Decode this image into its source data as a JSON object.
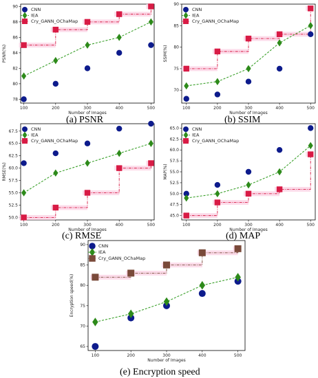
{
  "colors": {
    "cnn": "#0d1b8c",
    "iea": "#2d8a1a",
    "iea_line": "#3aa02a",
    "cry": "#d81b45",
    "cry_e": "#7a4a3a",
    "step_bg": "#fbd6e6",
    "axis": "#000000",
    "grid": "#dddddd"
  },
  "legend": {
    "cnn": "CNN",
    "iea": "IEA",
    "cry": "Cry_GANN_OChaMap"
  },
  "chart_data": [
    {
      "id": "psnr",
      "type": "scatter",
      "caption": "(a) PSNR",
      "xlabel": "Number of Images",
      "ylabel": "PSNR(%)",
      "x": [
        100,
        200,
        300,
        400,
        500
      ],
      "xlim": [
        90,
        510
      ],
      "ylim": [
        77.5,
        90.3
      ],
      "yticks": [
        78,
        80,
        82,
        84,
        86,
        88,
        90
      ],
      "xticks": [
        100,
        200,
        300,
        400,
        500
      ],
      "series": [
        {
          "name": "CNN",
          "values": [
            78,
            80,
            82,
            84,
            85
          ]
        },
        {
          "name": "IEA",
          "values": [
            81,
            83,
            85,
            86,
            88
          ]
        },
        {
          "name": "Cry_GANN_OChaMap",
          "values": [
            85,
            87,
            88,
            89,
            90
          ]
        }
      ],
      "legend_position": "top-left"
    },
    {
      "id": "ssim",
      "type": "scatter",
      "caption": "(b) SSIM",
      "xlabel": "Number of Images",
      "ylabel": "SSIM(%)",
      "x": [
        100,
        200,
        300,
        400,
        500
      ],
      "xlim": [
        85,
        515
      ],
      "ylim": [
        67,
        90
      ],
      "yticks": [
        70,
        75,
        80,
        85,
        90
      ],
      "xticks": [
        100,
        200,
        300,
        400,
        500
      ],
      "series": [
        {
          "name": "CNN",
          "values": [
            68,
            69,
            72,
            75,
            83
          ]
        },
        {
          "name": "IEA",
          "values": [
            71,
            72,
            75,
            81,
            85
          ]
        },
        {
          "name": "Cry_GANN_OChaMap",
          "values": [
            75,
            79,
            82,
            83,
            89
          ]
        }
      ],
      "legend_position": "top-left"
    },
    {
      "id": "rmse",
      "type": "scatter",
      "caption": "(c) RMSE",
      "xlabel": "Number of Images",
      "ylabel": "RMSE(%)",
      "x": [
        100,
        200,
        300,
        400,
        500
      ],
      "xlim": [
        90,
        510
      ],
      "ylim": [
        49.5,
        69
      ],
      "yticks": [
        50.0,
        52.5,
        55.0,
        57.5,
        60.0,
        62.5,
        65.0,
        67.5
      ],
      "ytick_labels": [
        "50.0",
        "52.5",
        "55.0",
        "57.5",
        "60.0",
        "62.5",
        "65.0",
        "67.5"
      ],
      "xticks": [
        100,
        200,
        300,
        400,
        500
      ],
      "series": [
        {
          "name": "CNN",
          "values": [
            61,
            63,
            65,
            68,
            69
          ]
        },
        {
          "name": "IEA",
          "values": [
            55,
            59,
            61,
            63,
            65
          ]
        },
        {
          "name": "Cry_GANN_OChaMap",
          "values": [
            50,
            52,
            55,
            60,
            61
          ]
        }
      ],
      "legend_position": "top-left"
    },
    {
      "id": "map",
      "type": "scatter",
      "caption": "(d) MAP",
      "xlabel": "Number of Images",
      "ylabel": "MAP(%)",
      "x": [
        100,
        200,
        300,
        400,
        500
      ],
      "xlim": [
        85,
        515
      ],
      "ylim": [
        44,
        66
      ],
      "yticks": [
        45.0,
        47.5,
        50.0,
        52.5,
        55.0,
        57.5,
        60.0,
        62.5,
        65.0
      ],
      "ytick_labels": [
        "45.0",
        "47.5",
        "50.0",
        "52.5",
        "55.0",
        "57.5",
        "60.0",
        "62.5",
        "65.0"
      ],
      "xticks": [
        100,
        200,
        300,
        400,
        500
      ],
      "series": [
        {
          "name": "CNN",
          "values": [
            50,
            52,
            55,
            60,
            65
          ]
        },
        {
          "name": "IEA",
          "values": [
            49,
            50,
            52,
            55,
            61
          ]
        },
        {
          "name": "Cry_GANN_OChaMap",
          "values": [
            45,
            48,
            50,
            51,
            59
          ]
        }
      ],
      "legend_position": "top-left"
    },
    {
      "id": "enc",
      "type": "scatter",
      "caption": "(e) Encryption speed",
      "xlabel": "Number of Images",
      "ylabel": "Encryption speed(%)",
      "x": [
        100,
        200,
        300,
        400,
        500
      ],
      "xlim": [
        80,
        520
      ],
      "ylim": [
        64,
        91
      ],
      "yticks": [
        65,
        70,
        75,
        80,
        85,
        90
      ],
      "xticks": [
        100,
        200,
        300,
        400,
        500
      ],
      "series": [
        {
          "name": "CNN",
          "values": [
            65,
            72,
            75,
            78,
            81
          ]
        },
        {
          "name": "IEA",
          "values": [
            71,
            73,
            76,
            80,
            82
          ]
        },
        {
          "name": "Cry_GANN_OChaMap",
          "values": [
            82,
            83,
            85,
            88,
            89
          ]
        }
      ],
      "legend_position": "top-left"
    }
  ]
}
